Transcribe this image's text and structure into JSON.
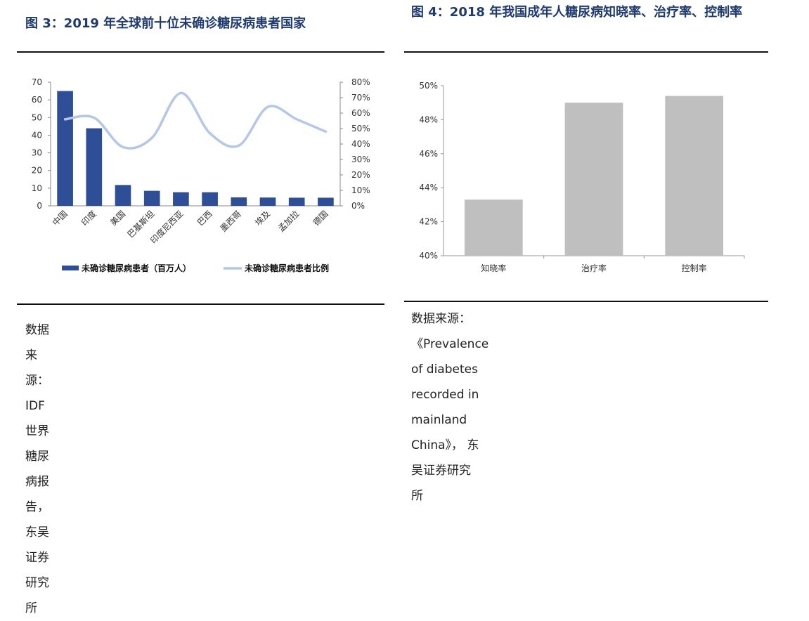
{
  "left": {
    "title": "图 3：2019 年全球前十位未确诊糖尿病患者国家",
    "source": "数据来源： IDF 世界糖尿病报告， 东吴证券研究所",
    "chart_data": {
      "type": "bar+line",
      "categories": [
        "中国",
        "印度",
        "美国",
        "巴基斯坦",
        "印度尼西亚",
        "巴西",
        "墨西哥",
        "埃及",
        "孟加拉",
        "德国"
      ],
      "series": [
        {
          "name": "未确诊糖尿病患者（百万人）",
          "type": "bar",
          "axis": "left",
          "values": [
            65,
            43.9,
            11.8,
            8.5,
            7.7,
            7.7,
            4.8,
            4.7,
            4.6,
            4.6
          ],
          "color": "#2e4f98"
        },
        {
          "name": "未确诊糖尿病患者比例",
          "type": "line",
          "axis": "right",
          "values": [
            56,
            57,
            38,
            44,
            73,
            47,
            39,
            64,
            56,
            48
          ],
          "color": "#b4c7e7"
        }
      ],
      "y_left": {
        "min": 0,
        "max": 70,
        "ticks": [
          "0",
          "10",
          "20",
          "30",
          "40",
          "50",
          "60",
          "70"
        ]
      },
      "y_right": {
        "min": 0,
        "max": 80,
        "ticks": [
          "0%",
          "10%",
          "20%",
          "30%",
          "40%",
          "50%",
          "60%",
          "70%",
          "80%"
        ]
      },
      "legend_position": "bottom"
    }
  },
  "right": {
    "title": "图 4：2018 年我国成年人糖尿病知晓率、治疗率、控制率",
    "source_line1": "数据来源：《Prevalence of diabetes recorded in mainland",
    "source_line2": "China》， 东吴证券研究所",
    "chart_data": {
      "type": "bar",
      "categories": [
        "知晓率",
        "治疗率",
        "控制率"
      ],
      "values": [
        43.3,
        49.0,
        49.4
      ],
      "ylim": [
        40,
        50
      ],
      "y_ticks": [
        "40%",
        "42%",
        "44%",
        "46%",
        "48%",
        "50%"
      ],
      "color": "#bfbfbf"
    }
  }
}
